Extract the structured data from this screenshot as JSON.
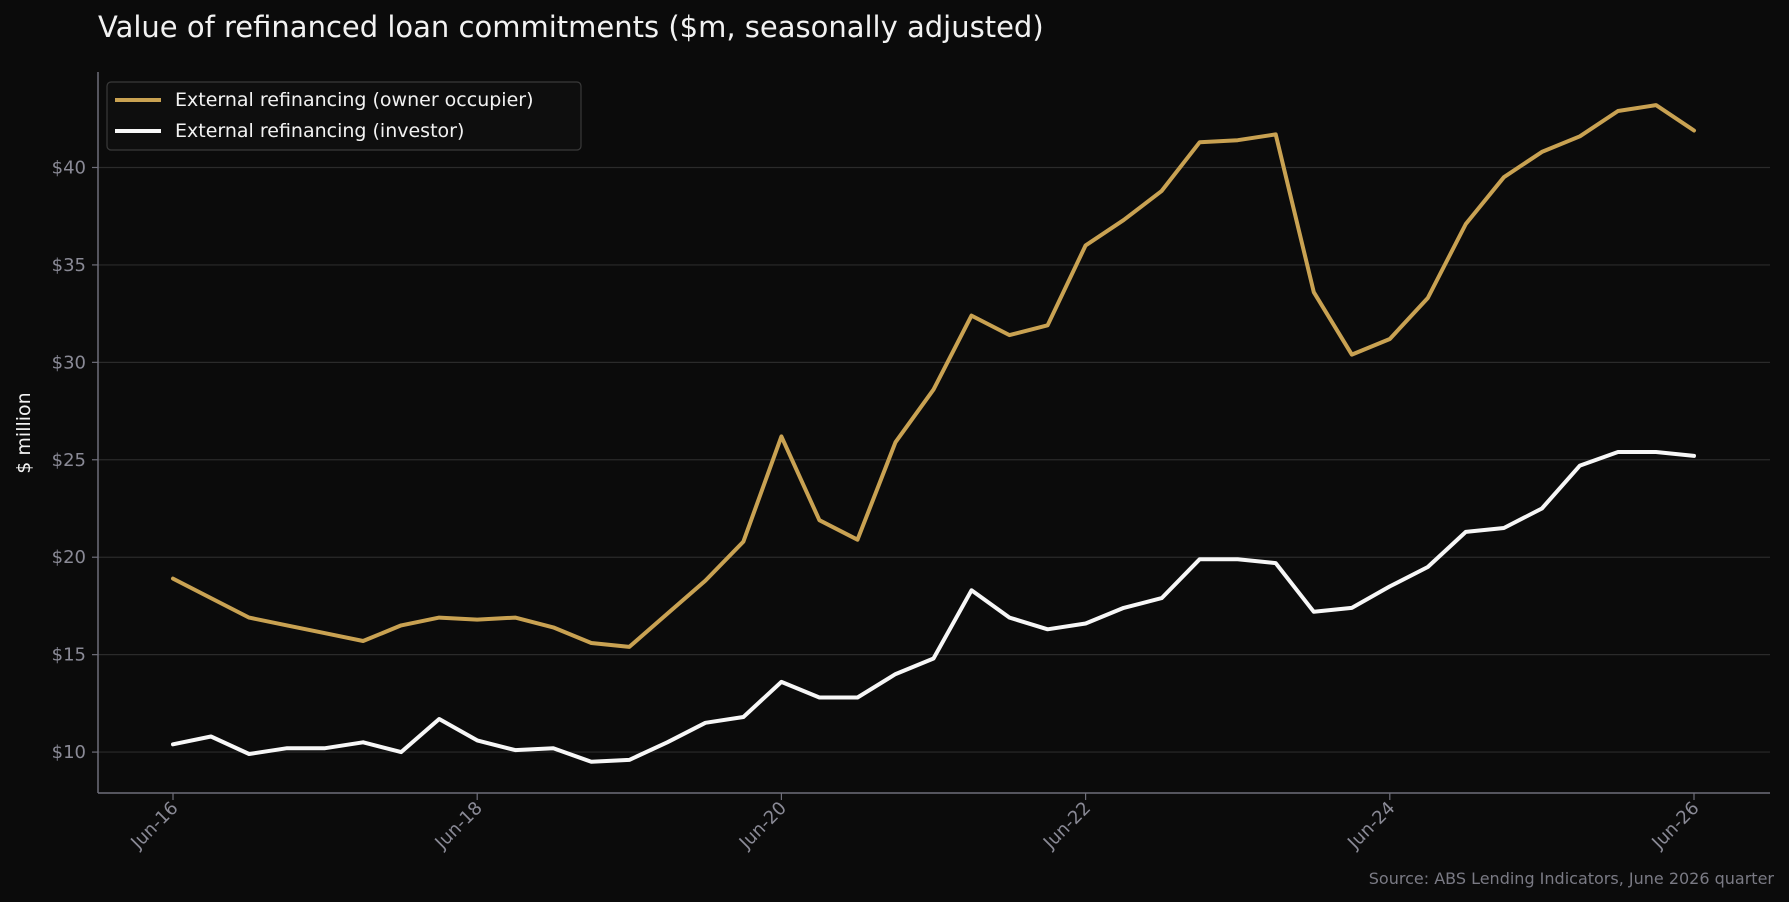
{
  "chart_data": {
    "type": "line",
    "title": "Value of refinanced loan commitments ($m, seasonally adjusted)",
    "ylabel": "$ million",
    "xlabel": "",
    "source": "Source: ABS Lending Indicators, June 2026 quarter",
    "ylim": [
      7.9,
      44.9
    ],
    "y_ticks": [
      10,
      15,
      20,
      25,
      30,
      35,
      40
    ],
    "y_tick_labels": [
      "$10",
      "$15",
      "$20",
      "$25",
      "$30",
      "$35",
      "$40"
    ],
    "x_ticks": [
      "Jun-16",
      "Jun-18",
      "Jun-20",
      "Jun-22",
      "Jun-24",
      "Jun-26"
    ],
    "x": [
      "Jun-16",
      "Sep-16",
      "Dec-16",
      "Mar-17",
      "Jun-17",
      "Sep-17",
      "Dec-17",
      "Mar-18",
      "Jun-18",
      "Sep-18",
      "Dec-18",
      "Mar-19",
      "Jun-19",
      "Sep-19",
      "Dec-19",
      "Mar-20",
      "Jun-20",
      "Sep-20",
      "Dec-20",
      "Mar-21",
      "Jun-21",
      "Sep-21",
      "Dec-21",
      "Mar-22",
      "Jun-22",
      "Sep-22",
      "Dec-22",
      "Mar-23",
      "Jun-23",
      "Sep-23",
      "Dec-23",
      "Mar-24",
      "Jun-24",
      "Sep-24",
      "Dec-24",
      "Mar-25",
      "Jun-25",
      "Sep-25",
      "Dec-25",
      "Mar-26",
      "Jun-26"
    ],
    "grid": true,
    "legend_position": "top-left",
    "series": [
      {
        "name": "External refinancing (owner occupier)",
        "color": "#c9a252",
        "values": [
          18.9,
          17.9,
          16.9,
          16.5,
          16.1,
          15.7,
          16.5,
          16.9,
          16.8,
          16.9,
          16.4,
          15.6,
          15.4,
          17.1,
          18.8,
          20.8,
          26.2,
          21.9,
          20.9,
          25.9,
          28.6,
          32.4,
          31.4,
          31.9,
          36.0,
          37.3,
          38.8,
          41.3,
          41.4,
          41.7,
          33.6,
          30.4,
          31.2,
          33.3,
          37.1,
          39.5,
          40.8,
          41.6,
          42.9,
          43.2,
          41.9
        ]
      },
      {
        "name": "External refinancing (investor)",
        "color": "#f7f7f7",
        "values": [
          10.4,
          10.8,
          9.9,
          10.2,
          10.2,
          10.5,
          10.0,
          11.7,
          10.6,
          10.1,
          10.2,
          9.5,
          9.6,
          10.5,
          11.5,
          11.8,
          13.6,
          12.8,
          12.8,
          14.0,
          14.8,
          18.3,
          16.9,
          16.3,
          16.6,
          17.4,
          17.9,
          19.9,
          19.9,
          19.7,
          17.2,
          17.4,
          18.5,
          19.5,
          21.3,
          21.5,
          22.5,
          24.7,
          25.4,
          25.4,
          25.2
        ]
      }
    ]
  }
}
